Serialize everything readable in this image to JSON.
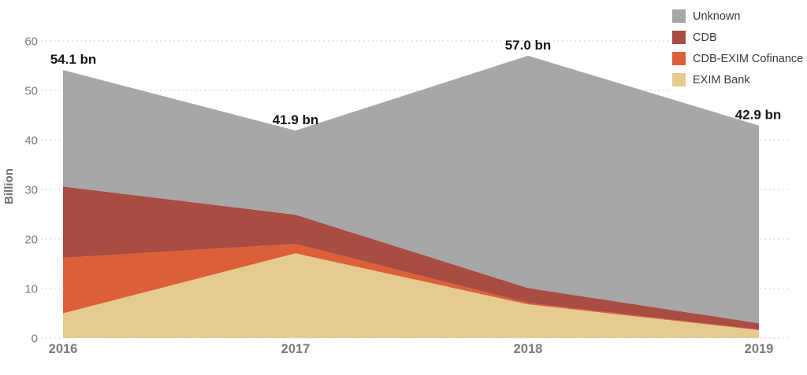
{
  "chart_data": {
    "type": "area",
    "stacked": true,
    "title": "",
    "xlabel": "",
    "ylabel": "Billion",
    "categories": [
      "2016",
      "2017",
      "2018",
      "2019"
    ],
    "series": [
      {
        "name": "EXIM Bank",
        "color": "#e5cb90",
        "values": [
          5.0,
          17.1,
          6.8,
          1.6
        ]
      },
      {
        "name": "CDB-EXIM Cofinance",
        "color": "#dc5f38",
        "values": [
          11.2,
          1.9,
          0.3,
          0.1
        ]
      },
      {
        "name": "CDB",
        "color": "#a94c42",
        "values": [
          14.4,
          5.9,
          3.0,
          1.3
        ]
      },
      {
        "name": "Unknown",
        "color": "#a7a6a8",
        "values": [
          23.5,
          17.0,
          46.9,
          39.9
        ]
      }
    ],
    "totals": [
      54.1,
      41.9,
      57.0,
      42.9
    ],
    "total_labels": [
      "54.1 bn",
      "41.9 bn",
      "57.0 bn",
      "42.9 bn"
    ],
    "yticks": [
      0,
      10,
      20,
      30,
      40,
      50,
      60
    ],
    "ylim": [
      0,
      60
    ],
    "grid": "horizontal-dotted",
    "legend_position": "top-right",
    "legend": [
      {
        "label": "Unknown",
        "color": "#a7a6a8"
      },
      {
        "label": "CDB",
        "color": "#a94c42"
      },
      {
        "label": "CDB-EXIM Cofinance",
        "color": "#dc5f38"
      },
      {
        "label": "EXIM Bank",
        "color": "#e5cb90"
      }
    ],
    "colors": {
      "gridline": "#d9d8da",
      "tick_label": "#7a7980",
      "axis_title": "#6f6e73",
      "year_label": "#7b7a7e",
      "data_label": "#161616",
      "background": "#ffffff"
    }
  }
}
